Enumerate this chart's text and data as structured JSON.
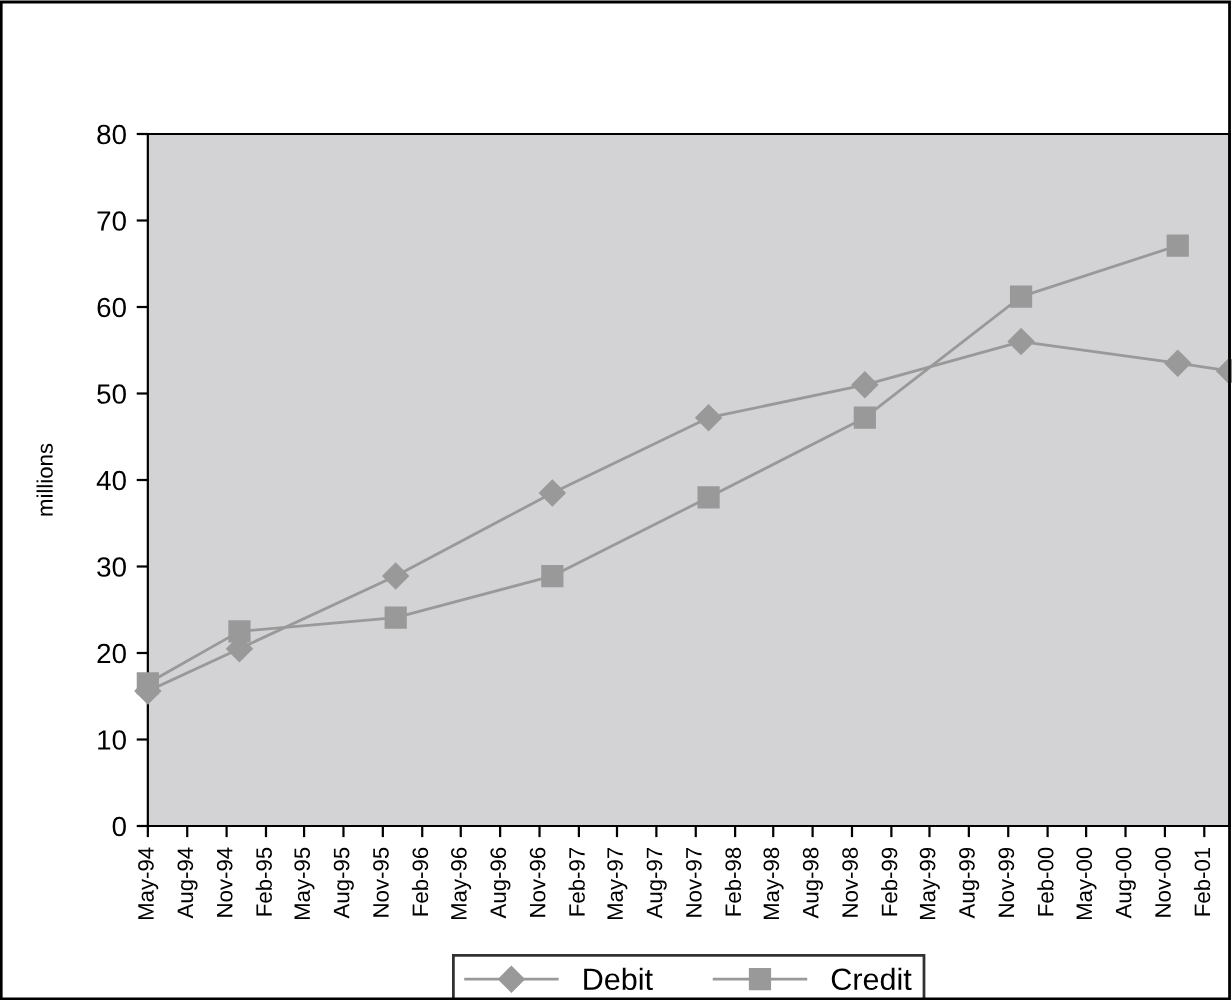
{
  "chart_data": {
    "type": "line",
    "ylabel": "millions",
    "x": [
      "1994-05",
      "1994-12",
      "1995-12",
      "1996-12",
      "1997-12",
      "1998-12",
      "1999-12",
      "2000-12",
      "2001-04"
    ],
    "series": [
      {
        "name": "Debit",
        "color": "#999999",
        "marker": "diamond",
        "values": [
          15.6,
          20.5,
          28.9,
          38.5,
          47.2,
          51.0,
          56.0,
          53.5,
          52.6
        ]
      },
      {
        "name": "Credit",
        "color": "#999999",
        "marker": "square",
        "values": [
          16.5,
          22.5,
          24.1,
          28.9,
          38.0,
          47.2,
          61.2,
          67.1,
          null
        ]
      }
    ],
    "xlim": [
      "1994-05",
      "2001-04"
    ],
    "xticks": [
      {
        "value": "1994-05",
        "label": "May-94"
      },
      {
        "value": "1994-08",
        "label": "Aug-94"
      },
      {
        "value": "1994-11",
        "label": "Nov-94"
      },
      {
        "value": "1995-02",
        "label": "Feb-95"
      },
      {
        "value": "1995-05",
        "label": "May-95"
      },
      {
        "value": "1995-08",
        "label": "Aug-95"
      },
      {
        "value": "1995-11",
        "label": "Nov-95"
      },
      {
        "value": "1996-02",
        "label": "Feb-96"
      },
      {
        "value": "1996-05",
        "label": "May-96"
      },
      {
        "value": "1996-08",
        "label": "Aug-96"
      },
      {
        "value": "1996-11",
        "label": "Nov-96"
      },
      {
        "value": "1997-02",
        "label": "Feb-97"
      },
      {
        "value": "1997-05",
        "label": "May-97"
      },
      {
        "value": "1997-08",
        "label": "Aug-97"
      },
      {
        "value": "1997-11",
        "label": "Nov-97"
      },
      {
        "value": "1998-02",
        "label": "Feb-98"
      },
      {
        "value": "1998-05",
        "label": "May-98"
      },
      {
        "value": "1998-08",
        "label": "Aug-98"
      },
      {
        "value": "1998-11",
        "label": "Nov-98"
      },
      {
        "value": "1999-02",
        "label": "Feb-99"
      },
      {
        "value": "1999-05",
        "label": "May-99"
      },
      {
        "value": "1999-08",
        "label": "Aug-99"
      },
      {
        "value": "1999-11",
        "label": "Nov-99"
      },
      {
        "value": "2000-02",
        "label": "Feb-00"
      },
      {
        "value": "2000-05",
        "label": "May-00"
      },
      {
        "value": "2000-08",
        "label": "Aug-00"
      },
      {
        "value": "2000-11",
        "label": "Nov-00"
      },
      {
        "value": "2001-02",
        "label": "Feb-01"
      }
    ],
    "ylim": [
      0,
      80
    ],
    "yticks": [
      0,
      10,
      20,
      30,
      40,
      50,
      60,
      70,
      80
    ],
    "grid": false,
    "legend": "bottom",
    "line_style": "solid"
  }
}
